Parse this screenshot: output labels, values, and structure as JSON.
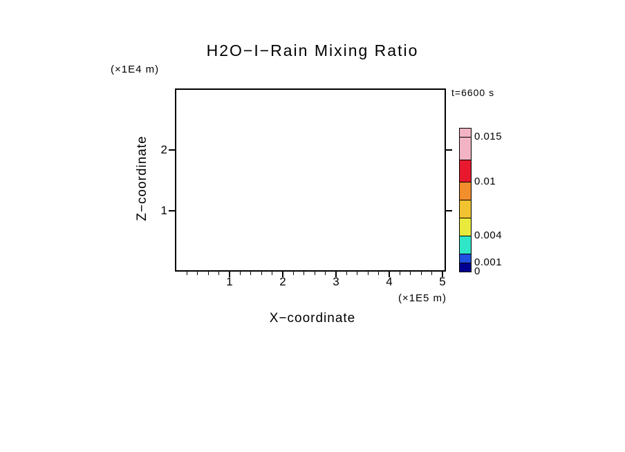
{
  "title": "H2O−I−Rain Mixing Ratio",
  "annotation": {
    "time": "t=6600 s"
  },
  "axes": {
    "x_label": "X−coordinate",
    "x_unit": "(×1E5 m)",
    "y_label": "Z−coordinate",
    "y_unit": "(×1E4 m)"
  },
  "chart_data": {
    "type": "heatmap",
    "title": "H2O−I−Rain Mixing Ratio",
    "xlabel": "X−coordinate",
    "x_unit_factor": "×1E5 m",
    "ylabel": "Z−coordinate",
    "y_unit_factor": "×1E4 m",
    "xlim": [
      0,
      5.1
    ],
    "ylim": [
      0,
      3
    ],
    "x_ticks": [
      1,
      2,
      3,
      4,
      5
    ],
    "y_ticks": [
      1,
      2
    ],
    "time": "t=6600 s",
    "values": [],
    "note": "Plot interior is empty: rain mixing ratio field has no values above the lowest contour level at t=6600 s.",
    "colorbar": {
      "min": 0,
      "max": 0.016,
      "segment_levels": [
        0,
        0.001,
        0.002,
        0.004,
        0.006,
        0.008,
        0.01,
        0.0125,
        0.015,
        0.016
      ],
      "colors": [
        "#000090",
        "#2050e0",
        "#30e6c8",
        "#eaea3c",
        "#f2c330",
        "#f28e2c",
        "#e8192e",
        "#f2b4c4",
        "#f2b4c4"
      ],
      "ticks": [
        {
          "value": 0.015,
          "label": "0.015"
        },
        {
          "value": 0.01,
          "label": "0.01"
        },
        {
          "value": 0.004,
          "label": "0.004"
        },
        {
          "value": 0.001,
          "label": "0.001"
        },
        {
          "value": 0,
          "label": "0"
        }
      ]
    }
  }
}
